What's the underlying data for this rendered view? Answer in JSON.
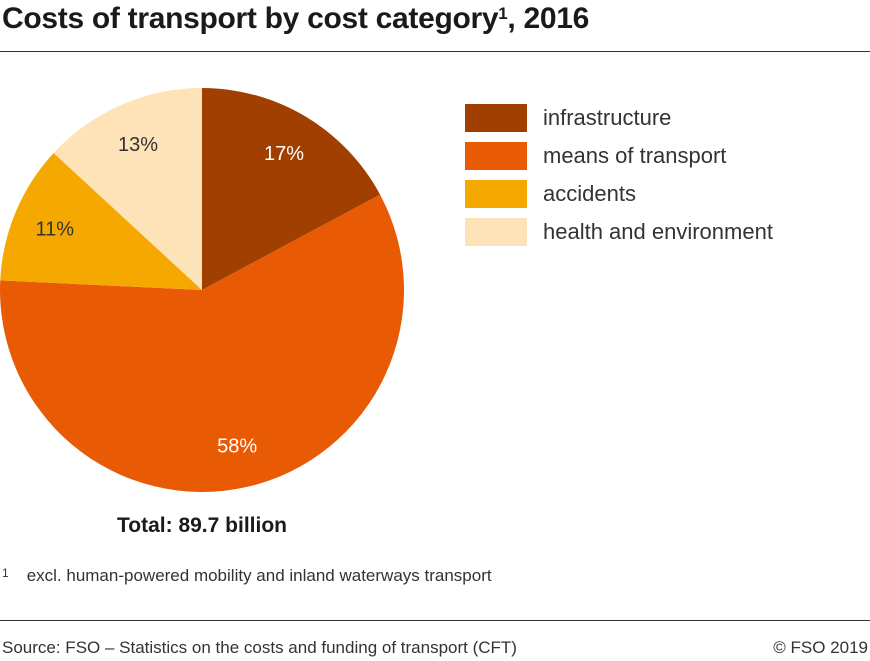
{
  "chart_data": {
    "type": "pie",
    "title": "Costs of transport by cost category",
    "title_footnote_marker": "1",
    "title_suffix": ", 2016",
    "categories": [
      "infrastructure",
      "means of transport",
      "accidents",
      "health and environment"
    ],
    "values": [
      17,
      58,
      11,
      13
    ],
    "data_labels": [
      "17%",
      "58%",
      "11%",
      "13%"
    ],
    "colors": [
      "#a13f00",
      "#e95a05",
      "#f5a800",
      "#fee3b8"
    ],
    "label_colors": [
      "#ffffff",
      "#ffffff",
      "#333333",
      "#333333"
    ],
    "start_angle": "12 o'clock, clockwise",
    "legend_position": "right",
    "total": "Total: 89.7 billion"
  },
  "footnote": {
    "marker": "1",
    "text": "excl. human-powered mobility and inland waterways transport"
  },
  "source": "Source: FSO – Statistics on the costs and funding of transport (CFT)",
  "copyright": "© FSO 2019"
}
